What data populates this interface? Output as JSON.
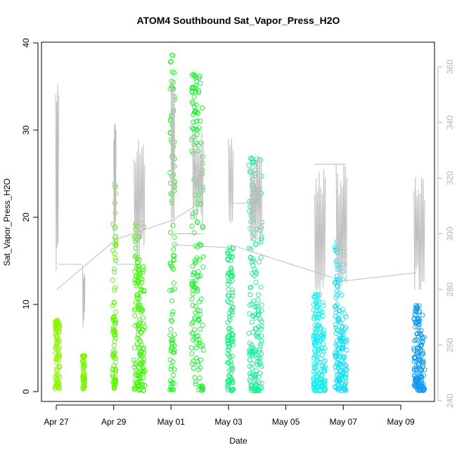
{
  "chart_data": {
    "type": "scatter",
    "title": "ATOM4 Southbound Sat_Vapor_Press_H2O",
    "xlabel": "Date",
    "ylabel": "Sat_Vapor_Press_H2O",
    "x_ticks": [
      "Apr 27",
      "Apr 29",
      "May 01",
      "May 03",
      "May 05",
      "May 07",
      "May 09"
    ],
    "x_tick_dates": [
      "2016-04-27",
      "2016-04-29",
      "2016-05-01",
      "2016-05-03",
      "2016-05-05",
      "2016-05-07",
      "2016-05-09"
    ],
    "x_range": [
      "2016-04-26 17:00",
      "2016-05-10 02:00"
    ],
    "ylim": [
      0,
      40
    ],
    "y_ticks": [
      0,
      10,
      20,
      30,
      40
    ],
    "y2lim": [
      240,
      360
    ],
    "y2_ticks": [
      240,
      260,
      280,
      300,
      320,
      340,
      360
    ],
    "y2_color": "#b4b4b4",
    "secondary_series_color": "#bdbdbd",
    "marker": "open-circle",
    "point_clusters": [
      {
        "date": "2016-04-27",
        "x_start": "2016-04-26 23:00",
        "x_end": "2016-04-27 03:00",
        "y_min": 0.1,
        "y_max": 8.2,
        "dense_top": 7.3,
        "color": "#8cf500"
      },
      {
        "date": "2016-04-28",
        "x_start": "2016-04-27 22:00",
        "x_end": "2016-04-28 00:00",
        "y_min": 0.3,
        "y_max": 4.1,
        "dense_top": 4.1,
        "color": "#7cf500"
      },
      {
        "date": "2016-04-29",
        "x_start": "2016-04-28 23:00",
        "x_end": "2016-04-29 02:00",
        "y_min": 0.1,
        "y_max": 23.8,
        "dense_top": 10.2,
        "color": "#5cf500"
      },
      {
        "date": "2016-04-30",
        "x_start": "2016-04-29 17:00",
        "x_end": "2016-04-30 02:00",
        "y_min": 0.1,
        "y_max": 19.3,
        "dense_top": 13.0,
        "color": "#3cf500"
      },
      {
        "date": "2016-05-01",
        "x_start": "2016-04-30 23:00",
        "x_end": "2016-05-01 03:00",
        "y_min": 0.1,
        "y_max": 38.6,
        "dense_top": 27.0,
        "color": "#1cf21c"
      },
      {
        "date": "2016-05-02",
        "x_start": "2016-05-01 17:00",
        "x_end": "2016-05-02 03:00",
        "y_min": 0.1,
        "y_max": 36.4,
        "dense_top": 30.0,
        "color": "#14f22a"
      },
      {
        "date": "2016-05-03",
        "x_start": "2016-05-02 23:00",
        "x_end": "2016-05-03 04:00",
        "y_min": 0.1,
        "y_max": 16.5,
        "dense_top": 12.0,
        "color": "#10f07a"
      },
      {
        "date": "2016-05-04",
        "x_start": "2016-05-03 17:00",
        "x_end": "2016-05-04 04:00",
        "y_min": 0.1,
        "y_max": 26.8,
        "dense_top": 20.0,
        "color": "#10f090"
      },
      {
        "date": "2016-05-06",
        "x_start": "2016-05-05 23:00",
        "x_end": "2016-05-06 09:00",
        "y_min": 0.1,
        "y_max": 11.2,
        "dense_top": 7.0,
        "color": "#10f0f0"
      },
      {
        "date": "2016-05-07",
        "x_start": "2016-05-06 17:00",
        "x_end": "2016-05-07 03:00",
        "y_min": 0.1,
        "y_max": 17.2,
        "dense_top": 9.0,
        "color": "#10e0f5"
      },
      {
        "date": "2016-05-09",
        "x_start": "2016-05-09 11:00",
        "x_end": "2016-05-09 20:00",
        "y_min": 0.1,
        "y_max": 9.9,
        "dense_top": 6.5,
        "color": "#1099f0"
      }
    ],
    "secondary_series": {
      "axis": "right",
      "segments": [
        {
          "x_start": "2016-04-26 23:30",
          "x_end": "2016-04-27 02:00",
          "y_min": 278,
          "y_max": 358
        },
        {
          "x_start": "2016-04-27 22:00",
          "x_end": "2016-04-28 00:00",
          "y_min": 266,
          "y_max": 290
        },
        {
          "x_start": "2016-04-29 00:00",
          "x_end": "2016-04-29 02:00",
          "y_min": 294,
          "y_max": 343
        },
        {
          "x_start": "2016-04-29 17:00",
          "x_end": "2016-04-30 02:00",
          "y_min": 290,
          "y_max": 336
        },
        {
          "x_start": "2016-05-01 00:00",
          "x_end": "2016-05-01 03:00",
          "y_min": 300,
          "y_max": 358
        },
        {
          "x_start": "2016-05-01 18:00",
          "x_end": "2016-05-02 03:00",
          "y_min": 302,
          "y_max": 338
        },
        {
          "x_start": "2016-05-03 00:00",
          "x_end": "2016-05-03 04:00",
          "y_min": 300,
          "y_max": 337
        },
        {
          "x_start": "2016-05-03 18:00",
          "x_end": "2016-05-04 04:00",
          "y_min": 296,
          "y_max": 328
        },
        {
          "x_start": "2016-05-06 00:00",
          "x_end": "2016-05-06 09:00",
          "y_min": 275,
          "y_max": 327
        },
        {
          "x_start": "2016-05-06 18:00",
          "x_end": "2016-05-07 03:00",
          "y_min": 278,
          "y_max": 326
        },
        {
          "x_start": "2016-05-09 11:00",
          "x_end": "2016-05-09 20:00",
          "y_min": 278,
          "y_max": 322
        }
      ],
      "connectors": [
        {
          "x": [
            "2016-04-27 02:00",
            "2016-04-27 22:00"
          ],
          "y": [
            289,
            289
          ]
        },
        {
          "x": [
            "2016-04-27 00:30",
            "2016-04-29 02:00"
          ],
          "y": [
            280,
            298
          ]
        },
        {
          "x": [
            "2016-04-29 02:00",
            "2016-04-29 18:00"
          ],
          "y": [
            289,
            289
          ]
        },
        {
          "x": [
            "2016-04-29 02:00",
            "2016-05-01 02:00"
          ],
          "y": [
            298,
            305
          ]
        },
        {
          "x": [
            "2016-05-01 02:00",
            "2016-05-02 00:00"
          ],
          "y": [
            305,
            311
          ]
        },
        {
          "x": [
            "2016-05-01 02:00",
            "2016-05-02 02:00"
          ],
          "y": [
            300,
            300
          ]
        },
        {
          "x": [
            "2016-05-01 02:00",
            "2016-05-03 02:00"
          ],
          "y": [
            296,
            295
          ]
        },
        {
          "x": [
            "2016-05-03 02:00",
            "2016-05-04 02:00"
          ],
          "y": [
            311,
            311
          ]
        },
        {
          "x": [
            "2016-05-03 02:00",
            "2016-05-07 00:00"
          ],
          "y": [
            296,
            283
          ]
        },
        {
          "x": [
            "2016-05-06 00:00",
            "2016-05-07 02:00"
          ],
          "y": [
            325,
            325
          ]
        },
        {
          "x": [
            "2016-05-07 00:00",
            "2016-05-09 13:00"
          ],
          "y": [
            283,
            286
          ]
        }
      ]
    },
    "grid": false,
    "legend": "none"
  }
}
